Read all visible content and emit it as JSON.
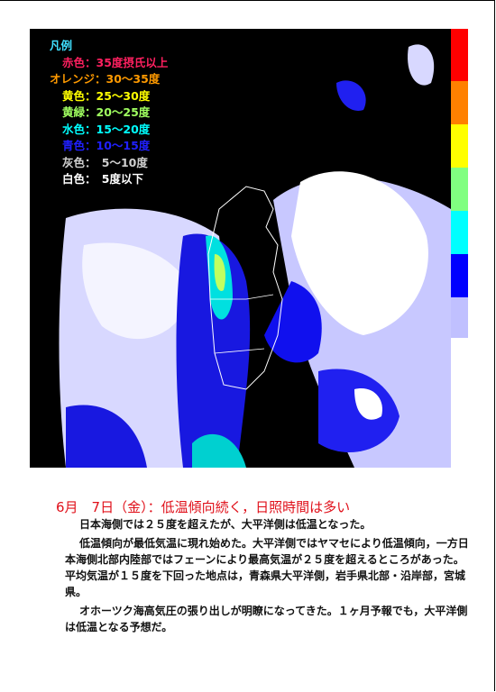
{
  "legend": {
    "title": "凡例",
    "items": [
      "赤色：35度摂氏以上",
      "オレンジ：30～35度",
      "黄色：25～30度",
      "黄緑：20～25度",
      "水色：15～20度",
      "青色：10～15度",
      "灰色：　5～10度",
      "白色：　5度以下"
    ]
  },
  "heading": "6月　7日（金）：低温傾向続く，日照時間は多い",
  "paragraphs": [
    "日本海側では２５度を超えたが、大平洋側は低温となった。",
    "低温傾向が最低気温に現れ始めた。大平洋側ではヤマセにより低温傾向，一方日本海側北部内陸部ではフェーンにより最高気温が２５度を超えるところがあった。平均気温が１５度を下回った地点は，青森県大平洋側，岩手県北部・沿岸部，宮城県。",
    "オホーツク海高気圧の張り出しが明瞭になってきた。１ヶ月予報でも，大平洋側は低温となる予想だ。"
  ]
}
